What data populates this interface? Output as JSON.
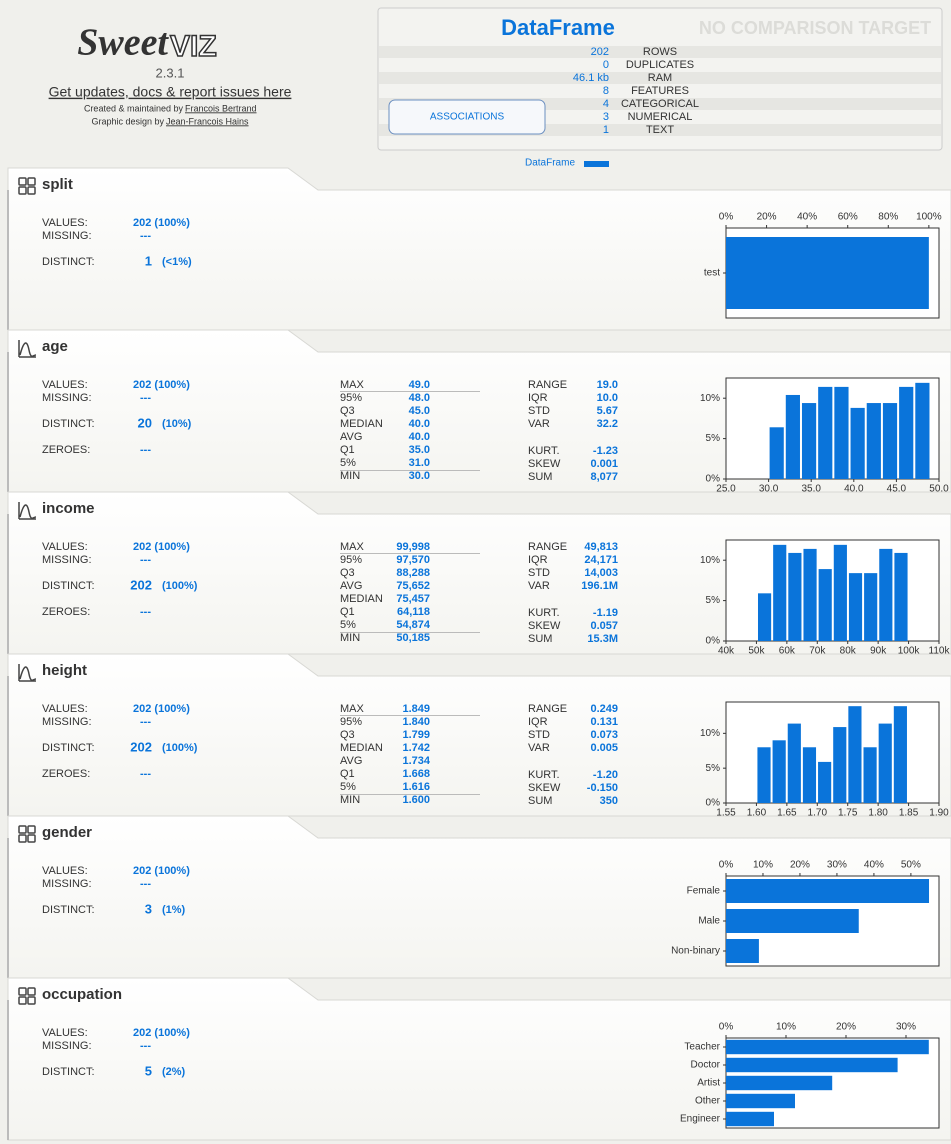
{
  "header": {
    "logo": [
      "Sweet",
      "VIZ"
    ],
    "version": "2.3.1",
    "link": "Get updates, docs & report issues here",
    "credit1": "Created & maintained by",
    "credit1_name": "Francois Bertrand",
    "credit2": "Graphic design by",
    "credit2_name": "Jean-Francois Hains"
  },
  "summary": {
    "title": "DataFrame",
    "compare": "NO COMPARISON TARGET",
    "button": "ASSOCIATIONS",
    "legend": "DataFrame",
    "rows": [
      {
        "value": "202",
        "label": "ROWS"
      },
      {
        "value": "0",
        "label": "DUPLICATES"
      },
      {
        "value": "46.1 kb",
        "label": "RAM"
      },
      {
        "value": "8",
        "label": "FEATURES"
      },
      {
        "value": "4",
        "label": "CATEGORICAL"
      },
      {
        "value": "3",
        "label": "NUMERICAL"
      },
      {
        "value": "1",
        "label": "TEXT"
      }
    ]
  },
  "labels": {
    "values": "VALUES:",
    "missing": "MISSING:",
    "distinct": "DISTINCT:",
    "zeroes": "ZEROES:"
  },
  "features": [
    {
      "name": "split",
      "kind": "categorical",
      "values": "202 (100%)",
      "missing": "---",
      "distinct": "1",
      "distinct_pct": "(<1%)",
      "chart": {
        "type": "bar",
        "color": "#0a74da",
        "categories": [
          "test"
        ],
        "values": [
          100
        ],
        "xlim": [
          0,
          105
        ],
        "xticks": [
          {
            "value": 0,
            "label": "0%"
          },
          {
            "value": 20,
            "label": "20%"
          },
          {
            "value": 40,
            "label": "40%"
          },
          {
            "value": 60,
            "label": "60%"
          },
          {
            "value": 80,
            "label": "80%"
          },
          {
            "value": 100,
            "label": "100%"
          }
        ]
      }
    },
    {
      "name": "age",
      "kind": "numerical",
      "values": "202 (100%)",
      "missing": "---",
      "distinct": "20",
      "distinct_pct": "(10%)",
      "zeroes": "---",
      "quantiles": [
        {
          "label": "MAX",
          "value": "49.0"
        },
        {
          "label": "95%",
          "value": "48.0"
        },
        {
          "label": "Q3",
          "value": "45.0"
        },
        {
          "label": "MEDIAN",
          "value": "40.0"
        },
        {
          "label": "AVG",
          "value": "40.0"
        },
        {
          "label": "Q1",
          "value": "35.0"
        },
        {
          "label": "5%",
          "value": "31.0"
        },
        {
          "label": "MIN",
          "value": "30.0"
        }
      ],
      "stats": [
        {
          "label": "RANGE",
          "value": "19.0"
        },
        {
          "label": "IQR",
          "value": "10.0"
        },
        {
          "label": "STD",
          "value": "5.67"
        },
        {
          "label": "VAR",
          "value": "32.2"
        }
      ],
      "stats2": [
        {
          "label": "KURT.",
          "value": "-1.23"
        },
        {
          "label": "SKEW",
          "value": "0.001"
        },
        {
          "label": "SUM",
          "value": "8,077"
        }
      ],
      "chart": {
        "type": "histogram",
        "color": "#0a74da",
        "bins": [
          30,
          31.9,
          33.8,
          35.7,
          37.6,
          39.5,
          41.4,
          43.3,
          45.2,
          47.1,
          49
        ],
        "values": [
          6.4,
          10.4,
          9.4,
          11.4,
          11.4,
          8.8,
          9.4,
          9.4,
          11.4,
          11.9
        ],
        "xlim": [
          25,
          50
        ],
        "ylim": [
          0,
          12.5
        ],
        "xticks": [
          {
            "value": 25,
            "label": "25.0"
          },
          {
            "value": 30,
            "label": "30.0"
          },
          {
            "value": 35,
            "label": "35.0"
          },
          {
            "value": 40,
            "label": "40.0"
          },
          {
            "value": 45,
            "label": "45.0"
          },
          {
            "value": 50,
            "label": "50.0"
          }
        ],
        "yticks": [
          {
            "value": 0,
            "label": "0%"
          },
          {
            "value": 5,
            "label": "5%"
          },
          {
            "value": 10,
            "label": "10%"
          }
        ]
      }
    },
    {
      "name": "income",
      "kind": "numerical",
      "values": "202 (100%)",
      "missing": "---",
      "distinct": "202",
      "distinct_pct": "(100%)",
      "zeroes": "---",
      "quantiles": [
        {
          "label": "MAX",
          "value": "99,998"
        },
        {
          "label": "95%",
          "value": "97,570"
        },
        {
          "label": "Q3",
          "value": "88,288"
        },
        {
          "label": "AVG",
          "value": "75,652"
        },
        {
          "label": "MEDIAN",
          "value": "75,457"
        },
        {
          "label": "Q1",
          "value": "64,118"
        },
        {
          "label": "5%",
          "value": "54,874"
        },
        {
          "label": "MIN",
          "value": "50,185"
        }
      ],
      "stats": [
        {
          "label": "RANGE",
          "value": "49,813"
        },
        {
          "label": "IQR",
          "value": "24,171"
        },
        {
          "label": "STD",
          "value": "14,003"
        },
        {
          "label": "VAR",
          "value": "196.1M"
        }
      ],
      "stats2": [
        {
          "label": "KURT.",
          "value": "-1.19"
        },
        {
          "label": "SKEW",
          "value": "0.057"
        },
        {
          "label": "SUM",
          "value": "15.3M"
        }
      ],
      "chart": {
        "type": "histogram",
        "color": "#0a74da",
        "bins": [
          50185,
          55166,
          60148,
          65129,
          70110,
          75092,
          80073,
          85054,
          90035,
          95017,
          99998
        ],
        "values": [
          5.9,
          11.9,
          10.9,
          11.4,
          8.9,
          11.9,
          8.4,
          8.4,
          11.4,
          10.9
        ],
        "xlim": [
          40000,
          110000
        ],
        "ylim": [
          0,
          12.5
        ],
        "xticks": [
          {
            "value": 40000,
            "label": "40k"
          },
          {
            "value": 50000,
            "label": "50k"
          },
          {
            "value": 60000,
            "label": "60k"
          },
          {
            "value": 70000,
            "label": "70k"
          },
          {
            "value": 80000,
            "label": "80k"
          },
          {
            "value": 90000,
            "label": "90k"
          },
          {
            "value": 100000,
            "label": "100k"
          },
          {
            "value": 110000,
            "label": "110k"
          }
        ],
        "yticks": [
          {
            "value": 0,
            "label": "0%"
          },
          {
            "value": 5,
            "label": "5%"
          },
          {
            "value": 10,
            "label": "10%"
          }
        ]
      }
    },
    {
      "name": "height",
      "kind": "numerical",
      "values": "202 (100%)",
      "missing": "---",
      "distinct": "202",
      "distinct_pct": "(100%)",
      "zeroes": "---",
      "quantiles": [
        {
          "label": "MAX",
          "value": "1.849"
        },
        {
          "label": "95%",
          "value": "1.840"
        },
        {
          "label": "Q3",
          "value": "1.799"
        },
        {
          "label": "MEDIAN",
          "value": "1.742"
        },
        {
          "label": "AVG",
          "value": "1.734"
        },
        {
          "label": "Q1",
          "value": "1.668"
        },
        {
          "label": "5%",
          "value": "1.616"
        },
        {
          "label": "MIN",
          "value": "1.600"
        }
      ],
      "stats": [
        {
          "label": "RANGE",
          "value": "0.249"
        },
        {
          "label": "IQR",
          "value": "0.131"
        },
        {
          "label": "STD",
          "value": "0.073"
        },
        {
          "label": "VAR",
          "value": "0.005"
        }
      ],
      "stats2": [
        {
          "label": "KURT.",
          "value": "-1.20"
        },
        {
          "label": "SKEW",
          "value": "-0.150"
        },
        {
          "label": "SUM",
          "value": "350"
        }
      ],
      "chart": {
        "type": "histogram",
        "color": "#0a74da",
        "bins": [
          1.6,
          1.6249,
          1.6498,
          1.6747,
          1.6996,
          1.7245,
          1.7494,
          1.7743,
          1.7992,
          1.8241,
          1.849
        ],
        "values": [
          8,
          9,
          11.4,
          8,
          5.9,
          10.9,
          13.9,
          8,
          11.4,
          13.9
        ],
        "xlim": [
          1.55,
          1.9
        ],
        "ylim": [
          0,
          14.5
        ],
        "xticks": [
          {
            "value": 1.55,
            "label": "1.55"
          },
          {
            "value": 1.6,
            "label": "1.60"
          },
          {
            "value": 1.65,
            "label": "1.65"
          },
          {
            "value": 1.7,
            "label": "1.70"
          },
          {
            "value": 1.75,
            "label": "1.75"
          },
          {
            "value": 1.8,
            "label": "1.80"
          },
          {
            "value": 1.85,
            "label": "1.85"
          },
          {
            "value": 1.9,
            "label": "1.90"
          }
        ],
        "yticks": [
          {
            "value": 0,
            "label": "0%"
          },
          {
            "value": 5,
            "label": "5%"
          },
          {
            "value": 10,
            "label": "10%"
          }
        ]
      }
    },
    {
      "name": "gender",
      "kind": "categorical",
      "values": "202 (100%)",
      "missing": "---",
      "distinct": "3",
      "distinct_pct": "(1%)",
      "chart": {
        "type": "bar",
        "color": "#0a74da",
        "categories": [
          "Female",
          "Male",
          "Non-binary"
        ],
        "values": [
          54.9,
          35.9,
          8.9
        ],
        "xlim": [
          0,
          57.6
        ],
        "xticks": [
          {
            "value": 0,
            "label": "0%"
          },
          {
            "value": 10,
            "label": "10%"
          },
          {
            "value": 20,
            "label": "20%"
          },
          {
            "value": 30,
            "label": "30%"
          },
          {
            "value": 40,
            "label": "40%"
          },
          {
            "value": 50,
            "label": "50%"
          }
        ]
      }
    },
    {
      "name": "occupation",
      "kind": "categorical",
      "values": "202 (100%)",
      "missing": "---",
      "distinct": "5",
      "distinct_pct": "(2%)",
      "chart": {
        "type": "bar",
        "color": "#0a74da",
        "categories": [
          "Teacher",
          "Doctor",
          "Artist",
          "Other",
          "Engineer"
        ],
        "values": [
          33.8,
          28.6,
          17.7,
          11.5,
          8.0
        ],
        "xlim": [
          0,
          35.5
        ],
        "xticks": [
          {
            "value": 0,
            "label": "0%"
          },
          {
            "value": 10,
            "label": "10%"
          },
          {
            "value": 20,
            "label": "20%"
          },
          {
            "value": 30,
            "label": "30%"
          }
        ]
      }
    }
  ]
}
